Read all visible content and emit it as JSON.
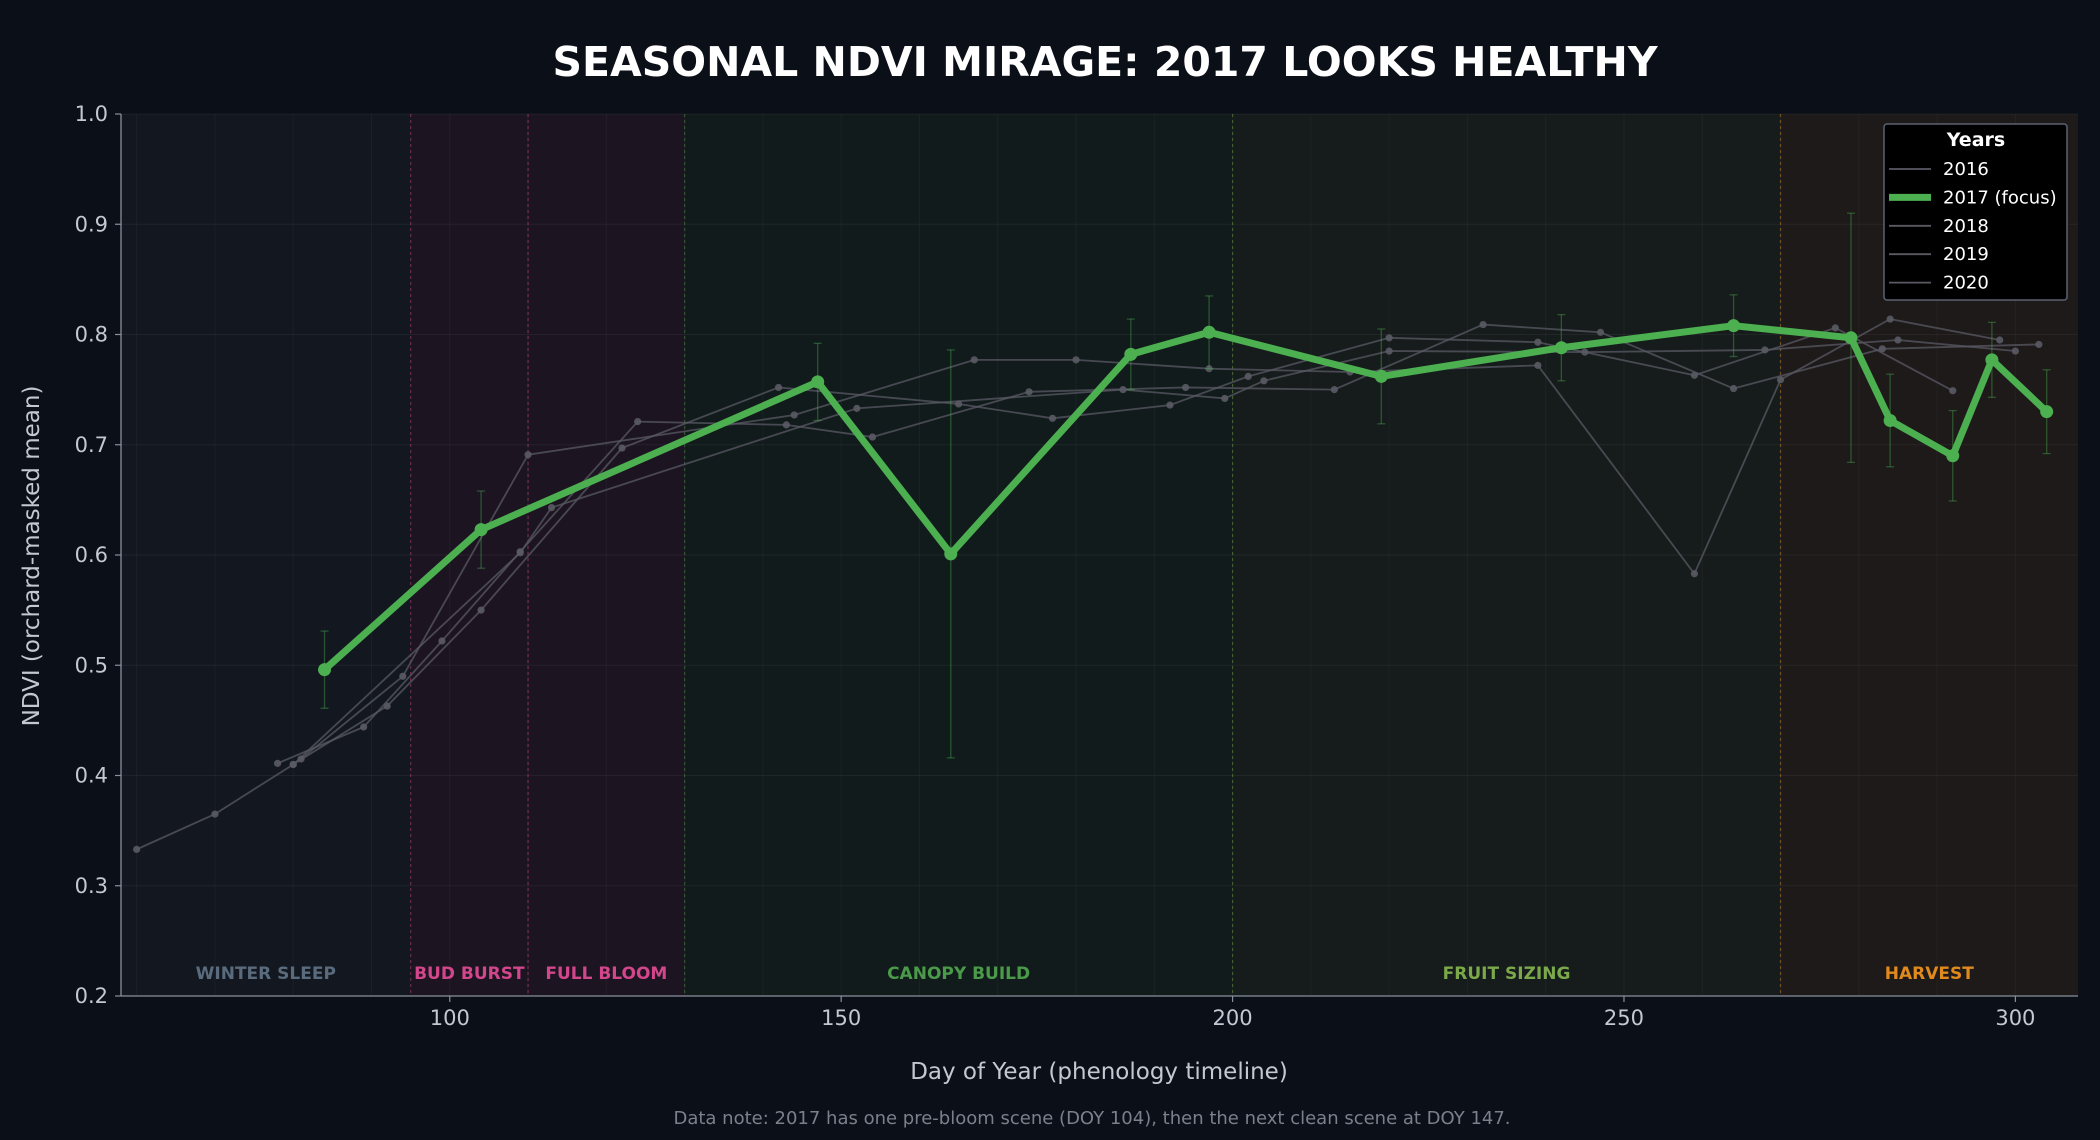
{
  "chart_data": {
    "type": "line",
    "title": "SEASONAL NDVI MIRAGE: 2017 LOOKS HEALTHY",
    "xlabel": "Day of Year (phenology timeline)",
    "ylabel": "NDVI (orchard-masked mean)",
    "note": "Data note: 2017 has one pre-bloom scene (DOY 104), then the next clean scene at DOY 147.",
    "xlim": [
      58,
      308
    ],
    "ylim": [
      0.2,
      1.0
    ],
    "xticks": [
      100,
      150,
      200,
      250,
      300
    ],
    "yticks": [
      0.2,
      0.3,
      0.4,
      0.5,
      0.6,
      0.7,
      0.8,
      0.9,
      1.0
    ],
    "xtick_labels": [
      "100",
      "150",
      "200",
      "250",
      "300"
    ],
    "ytick_labels": [
      "0.2",
      "0.3",
      "0.4",
      "0.5",
      "0.6",
      "0.7",
      "0.8",
      "0.9",
      "1.0"
    ],
    "grid": true,
    "legend": {
      "title": "Years",
      "placement": "top-right"
    },
    "colors": {
      "focus": "#4caf50",
      "background_series": "#5a5a64",
      "winter": "#5a6b7d",
      "bud_burst": "#d2468c",
      "full_bloom": "#d2468c",
      "canopy": "#4a9a4a",
      "fruit": "#7aa84a",
      "harvest": "#e08a1e"
    },
    "phases": [
      {
        "name": "WINTER SLEEP",
        "start": 58,
        "end": 95,
        "color": "#5a6b7d"
      },
      {
        "name": "BUD BURST",
        "start": 95,
        "end": 110,
        "color": "#d2468c"
      },
      {
        "name": "FULL BLOOM",
        "start": 110,
        "end": 130,
        "color": "#d2468c"
      },
      {
        "name": "CANOPY BUILD",
        "start": 130,
        "end": 200,
        "color": "#4a9a4a"
      },
      {
        "name": "FRUIT SIZING",
        "start": 200,
        "end": 270,
        "color": "#7aa84a"
      },
      {
        "name": "HARVEST",
        "start": 270,
        "end": 308,
        "color": "#e08a1e"
      }
    ],
    "series": [
      {
        "name": "2016",
        "focus": false,
        "x": [
          60,
          70,
          80,
          92,
          104,
          122,
          142,
          165,
          177,
          192,
          202,
          220,
          239,
          259,
          277,
          292
        ],
        "y": [
          0.333,
          0.365,
          0.41,
          0.463,
          0.55,
          0.697,
          0.752,
          0.737,
          0.724,
          0.736,
          0.762,
          0.797,
          0.793,
          0.763,
          0.806,
          0.749
        ]
      },
      {
        "name": "2017 (focus)",
        "focus": true,
        "x": [
          84,
          104,
          147,
          164,
          187,
          197,
          219,
          242,
          264,
          279,
          284,
          292,
          297,
          304
        ],
        "y": [
          0.496,
          0.623,
          0.757,
          0.601,
          0.782,
          0.802,
          0.762,
          0.788,
          0.808,
          0.797,
          0.722,
          0.69,
          0.777,
          0.73
        ],
        "err": [
          0.035,
          0.035,
          0.035,
          0.185,
          0.032,
          0.033,
          0.043,
          0.03,
          0.028,
          0.113,
          0.042,
          0.041,
          0.034,
          0.038
        ]
      },
      {
        "name": "2018",
        "focus": false,
        "x": [
          78,
          89,
          99,
          109,
          124,
          143,
          154,
          174,
          194,
          213,
          232,
          247,
          264,
          283,
          303
        ],
        "y": [
          0.411,
          0.444,
          0.522,
          0.603,
          0.721,
          0.718,
          0.707,
          0.748,
          0.752,
          0.75,
          0.809,
          0.802,
          0.751,
          0.787,
          0.791
        ]
      },
      {
        "name": "2019",
        "focus": false,
        "x": [
          81,
          94,
          110,
          144,
          167,
          180,
          197,
          215,
          239,
          259,
          270,
          284,
          298
        ],
        "y": [
          0.415,
          0.49,
          0.691,
          0.727,
          0.777,
          0.777,
          0.769,
          0.766,
          0.772,
          0.583,
          0.759,
          0.814,
          0.795
        ]
      },
      {
        "name": "2020",
        "focus": false,
        "x": [
          80,
          109,
          113,
          152,
          186,
          199,
          204,
          220,
          245,
          268,
          285,
          300
        ],
        "y": [
          0.41,
          0.602,
          0.643,
          0.733,
          0.75,
          0.742,
          0.758,
          0.785,
          0.784,
          0.786,
          0.795,
          0.785
        ]
      }
    ]
  }
}
